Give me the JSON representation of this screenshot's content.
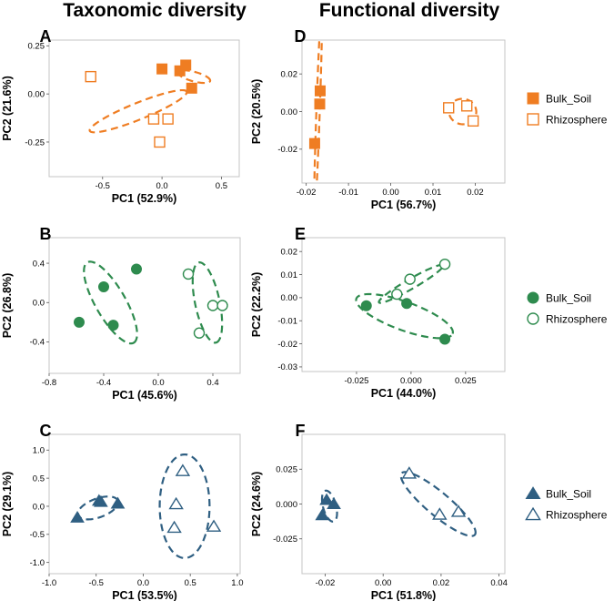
{
  "column_titles": {
    "left": "Taxonomic diversity",
    "right": "Functional diversity"
  },
  "colors": {
    "row1": "#EF7D22",
    "row2": "#2E8B4E",
    "row3": "#2F5F82"
  },
  "legends": [
    {
      "row": 1,
      "marker": "square",
      "color": "#EF7D22",
      "entries": [
        "Bulk_Soil",
        "Rhizosphere"
      ]
    },
    {
      "row": 2,
      "marker": "circle",
      "color": "#2E8B4E",
      "entries": [
        "Bulk_Soil",
        "Rhizosphere"
      ]
    },
    {
      "row": 3,
      "marker": "triangle",
      "color": "#2F5F82",
      "entries": [
        "Bulk_Soil",
        "Rhizosphere"
      ]
    }
  ],
  "chart_data": [
    {
      "panel": "A",
      "type": "scatter",
      "color": "#EF7D22",
      "marker": "square",
      "xlabel": "PC1 (52.9%)",
      "ylabel": "PC2 (21.6%)",
      "xlim": [
        -0.95,
        0.65
      ],
      "ylim": [
        -0.43,
        0.28
      ],
      "xticks": [
        -0.5,
        0.0,
        0.5
      ],
      "xticklabels": [
        "-0.5",
        "0.0",
        "0.5"
      ],
      "yticks": [
        -0.25,
        0.0,
        0.25
      ],
      "yticklabels": [
        "-0.25",
        "0.00",
        "0.25"
      ],
      "series": [
        {
          "name": "Bulk_Soil",
          "filled": true,
          "points": [
            [
              0.0,
              0.13
            ],
            [
              0.15,
              0.12
            ],
            [
              0.2,
              0.15
            ],
            [
              0.25,
              0.03
            ]
          ]
        },
        {
          "name": "Rhizosphere",
          "filled": false,
          "points": [
            [
              -0.6,
              0.09
            ],
            [
              -0.07,
              -0.13
            ],
            [
              0.05,
              -0.13
            ],
            [
              -0.02,
              -0.25
            ]
          ]
        }
      ],
      "ellipses": [
        {
          "center": [
            0.27,
            0.09
          ],
          "rx": 0.28,
          "ry": 0.08,
          "angle": -15
        },
        {
          "center": [
            -0.2,
            -0.09
          ],
          "rx": 0.88,
          "ry": 0.14,
          "angle": 22
        }
      ]
    },
    {
      "panel": "D",
      "type": "scatter",
      "color": "#EF7D22",
      "marker": "square",
      "xlabel": "PC1 (56.7%)",
      "ylabel": "PC2 (20.5%)",
      "xlim": [
        -0.021,
        0.027
      ],
      "ylim": [
        -0.038,
        0.038
      ],
      "xticks": [
        -0.02,
        -0.01,
        0.0,
        0.01,
        0.02
      ],
      "xticklabels": [
        "-0.02",
        "-0.01",
        "0.00",
        "0.01",
        "0.02"
      ],
      "yticks": [
        -0.02,
        0.0,
        0.02
      ],
      "yticklabels": [
        "-0.02",
        "0.00",
        "0.02"
      ],
      "series": [
        {
          "name": "Bulk_Soil",
          "filled": true,
          "points": [
            [
              -0.018,
              -0.017
            ],
            [
              -0.0168,
              0.004
            ],
            [
              -0.0167,
              0.011
            ]
          ]
        },
        {
          "name": "Rhizosphere",
          "filled": false,
          "points": [
            [
              0.0137,
              0.002
            ],
            [
              0.018,
              0.003
            ],
            [
              0.0195,
              -0.005
            ]
          ]
        }
      ],
      "ellipses": [
        {
          "center": [
            0.017,
            0.0
          ],
          "rx": 0.0065,
          "ry": 0.006,
          "angle": -10
        },
        {
          "center": [
            -0.0172,
            0.0
          ],
          "rx": 0.05,
          "ry": 0.0008,
          "angle": 88
        }
      ]
    },
    {
      "panel": "B",
      "type": "scatter",
      "color": "#2E8B4E",
      "marker": "circle",
      "xlabel": "PC1 (45.6%)",
      "ylabel": "PC2 (26.8%)",
      "xlim": [
        -0.8,
        0.6
      ],
      "ylim": [
        -0.72,
        0.66
      ],
      "xticks": [
        -0.8,
        -0.4,
        0.0,
        0.4
      ],
      "xticklabels": [
        "-0.8",
        "-0.4",
        "0.0",
        "0.4"
      ],
      "yticks": [
        -0.4,
        0.0,
        0.4
      ],
      "yticklabels": [
        "-0.4",
        "0.0",
        "0.4"
      ],
      "series": [
        {
          "name": "Bulk_Soil",
          "filled": true,
          "points": [
            [
              -0.58,
              -0.2
            ],
            [
              -0.4,
              0.16
            ],
            [
              -0.33,
              -0.23
            ],
            [
              -0.16,
              0.34
            ]
          ]
        },
        {
          "name": "Rhizosphere",
          "filled": false,
          "points": [
            [
              0.22,
              0.29
            ],
            [
              0.4,
              -0.03
            ],
            [
              0.47,
              -0.03
            ],
            [
              0.3,
              -0.31
            ]
          ]
        }
      ],
      "ellipses": [
        {
          "center": [
            -0.35,
            0.0
          ],
          "rx": 0.68,
          "ry": 0.22,
          "angle": -60
        },
        {
          "center": [
            0.36,
            0.0
          ],
          "rx": 0.6,
          "ry": 0.18,
          "angle": -78
        }
      ]
    },
    {
      "panel": "E",
      "type": "scatter",
      "color": "#2E8B4E",
      "marker": "circle",
      "xlabel": "PC1 (44.0%)",
      "ylabel": "PC2 (22.2%)",
      "xlim": [
        -0.05,
        0.043
      ],
      "ylim": [
        -0.032,
        0.026
      ],
      "xticks": [
        -0.025,
        0.0,
        0.025
      ],
      "xticklabels": [
        "-0.025",
        "0.000",
        "0.025"
      ],
      "yticks": [
        -0.03,
        -0.02,
        -0.01,
        0.0,
        0.01,
        0.02
      ],
      "yticklabels": [
        "-0.03",
        "-0.02",
        "-0.01",
        "0.00",
        "0.01",
        "0.02"
      ],
      "series": [
        {
          "name": "Bulk_Soil",
          "filled": true,
          "points": [
            [
              -0.0205,
              -0.0035
            ],
            [
              -0.002,
              -0.0025
            ],
            [
              0.0155,
              -0.018
            ]
          ]
        },
        {
          "name": "Rhizosphere",
          "filled": false,
          "points": [
            [
              -0.0065,
              0.0015
            ],
            [
              -0.0005,
              0.008
            ],
            [
              0.0155,
              0.0145
            ]
          ]
        }
      ],
      "ellipses": [
        {
          "center": [
            -0.003,
            -0.008
          ],
          "rx": 0.047,
          "ry": 0.013,
          "angle": -20
        },
        {
          "center": [
            0.0,
            0.006
          ],
          "rx": 0.034,
          "ry": 0.0045,
          "angle": 30
        }
      ]
    },
    {
      "panel": "C",
      "type": "scatter",
      "color": "#2F5F82",
      "marker": "triangle",
      "xlabel": "PC1 (53.5%)",
      "ylabel": "PC2 (29.1%)",
      "xlim": [
        -1.0,
        1.03
      ],
      "ylim": [
        -1.2,
        1.28
      ],
      "xticks": [
        -1.0,
        -0.5,
        0.0,
        0.5,
        1.0
      ],
      "xticklabels": [
        "-1.0",
        "-0.5",
        "0.0",
        "0.5",
        "1.0"
      ],
      "yticks": [
        -1.0,
        -0.5,
        0.0,
        0.5,
        1.0
      ],
      "yticklabels": [
        "-1.0",
        "-0.5",
        "0.0",
        "0.5",
        "1.0"
      ],
      "series": [
        {
          "name": "Bulk_Soil",
          "filled": true,
          "points": [
            [
              -0.7,
              -0.2
            ],
            [
              -0.47,
              0.1
            ],
            [
              -0.45,
              0.08
            ],
            [
              -0.27,
              0.05
            ]
          ]
        },
        {
          "name": "Rhizosphere",
          "filled": false,
          "points": [
            [
              0.42,
              0.63
            ],
            [
              0.35,
              0.04
            ],
            [
              0.33,
              -0.38
            ],
            [
              0.75,
              -0.36
            ]
          ]
        }
      ],
      "ellipses": [
        {
          "center": [
            -0.48,
            -0.03
          ],
          "rx": 0.45,
          "ry": 0.2,
          "angle": 20
        },
        {
          "center": [
            0.44,
            0.0
          ],
          "rx": 0.53,
          "ry": 1.1,
          "angle": 0
        }
      ]
    },
    {
      "panel": "F",
      "type": "scatter",
      "color": "#2F5F82",
      "marker": "triangle",
      "xlabel": "PC1 (51.8%)",
      "ylabel": "PC2 (24.6%)",
      "xlim": [
        -0.028,
        0.042
      ],
      "ylim": [
        -0.05,
        0.05
      ],
      "xticks": [
        -0.02,
        0.0,
        0.02,
        0.04
      ],
      "xticklabels": [
        "-0.02",
        "0.00",
        "0.02",
        "0.04"
      ],
      "yticks": [
        -0.025,
        0.0,
        0.025
      ],
      "yticklabels": [
        "-0.025",
        "0.000",
        "0.025"
      ],
      "series": [
        {
          "name": "Bulk_Soil",
          "filled": true,
          "points": [
            [
              -0.021,
              -0.008
            ],
            [
              -0.0195,
              0.003
            ],
            [
              -0.017,
              0.0
            ]
          ]
        },
        {
          "name": "Rhizosphere",
          "filled": false,
          "points": [
            [
              0.009,
              0.022
            ],
            [
              0.0195,
              -0.0075
            ],
            [
              0.026,
              -0.0055
            ]
          ]
        }
      ],
      "ellipses": [
        {
          "center": [
            -0.0185,
            -0.0015
          ],
          "rx": 0.0045,
          "ry": 0.011,
          "angle": 15
        },
        {
          "center": [
            0.019,
            0.0
          ],
          "rx": 0.033,
          "ry": 0.008,
          "angle": -40
        }
      ]
    }
  ]
}
